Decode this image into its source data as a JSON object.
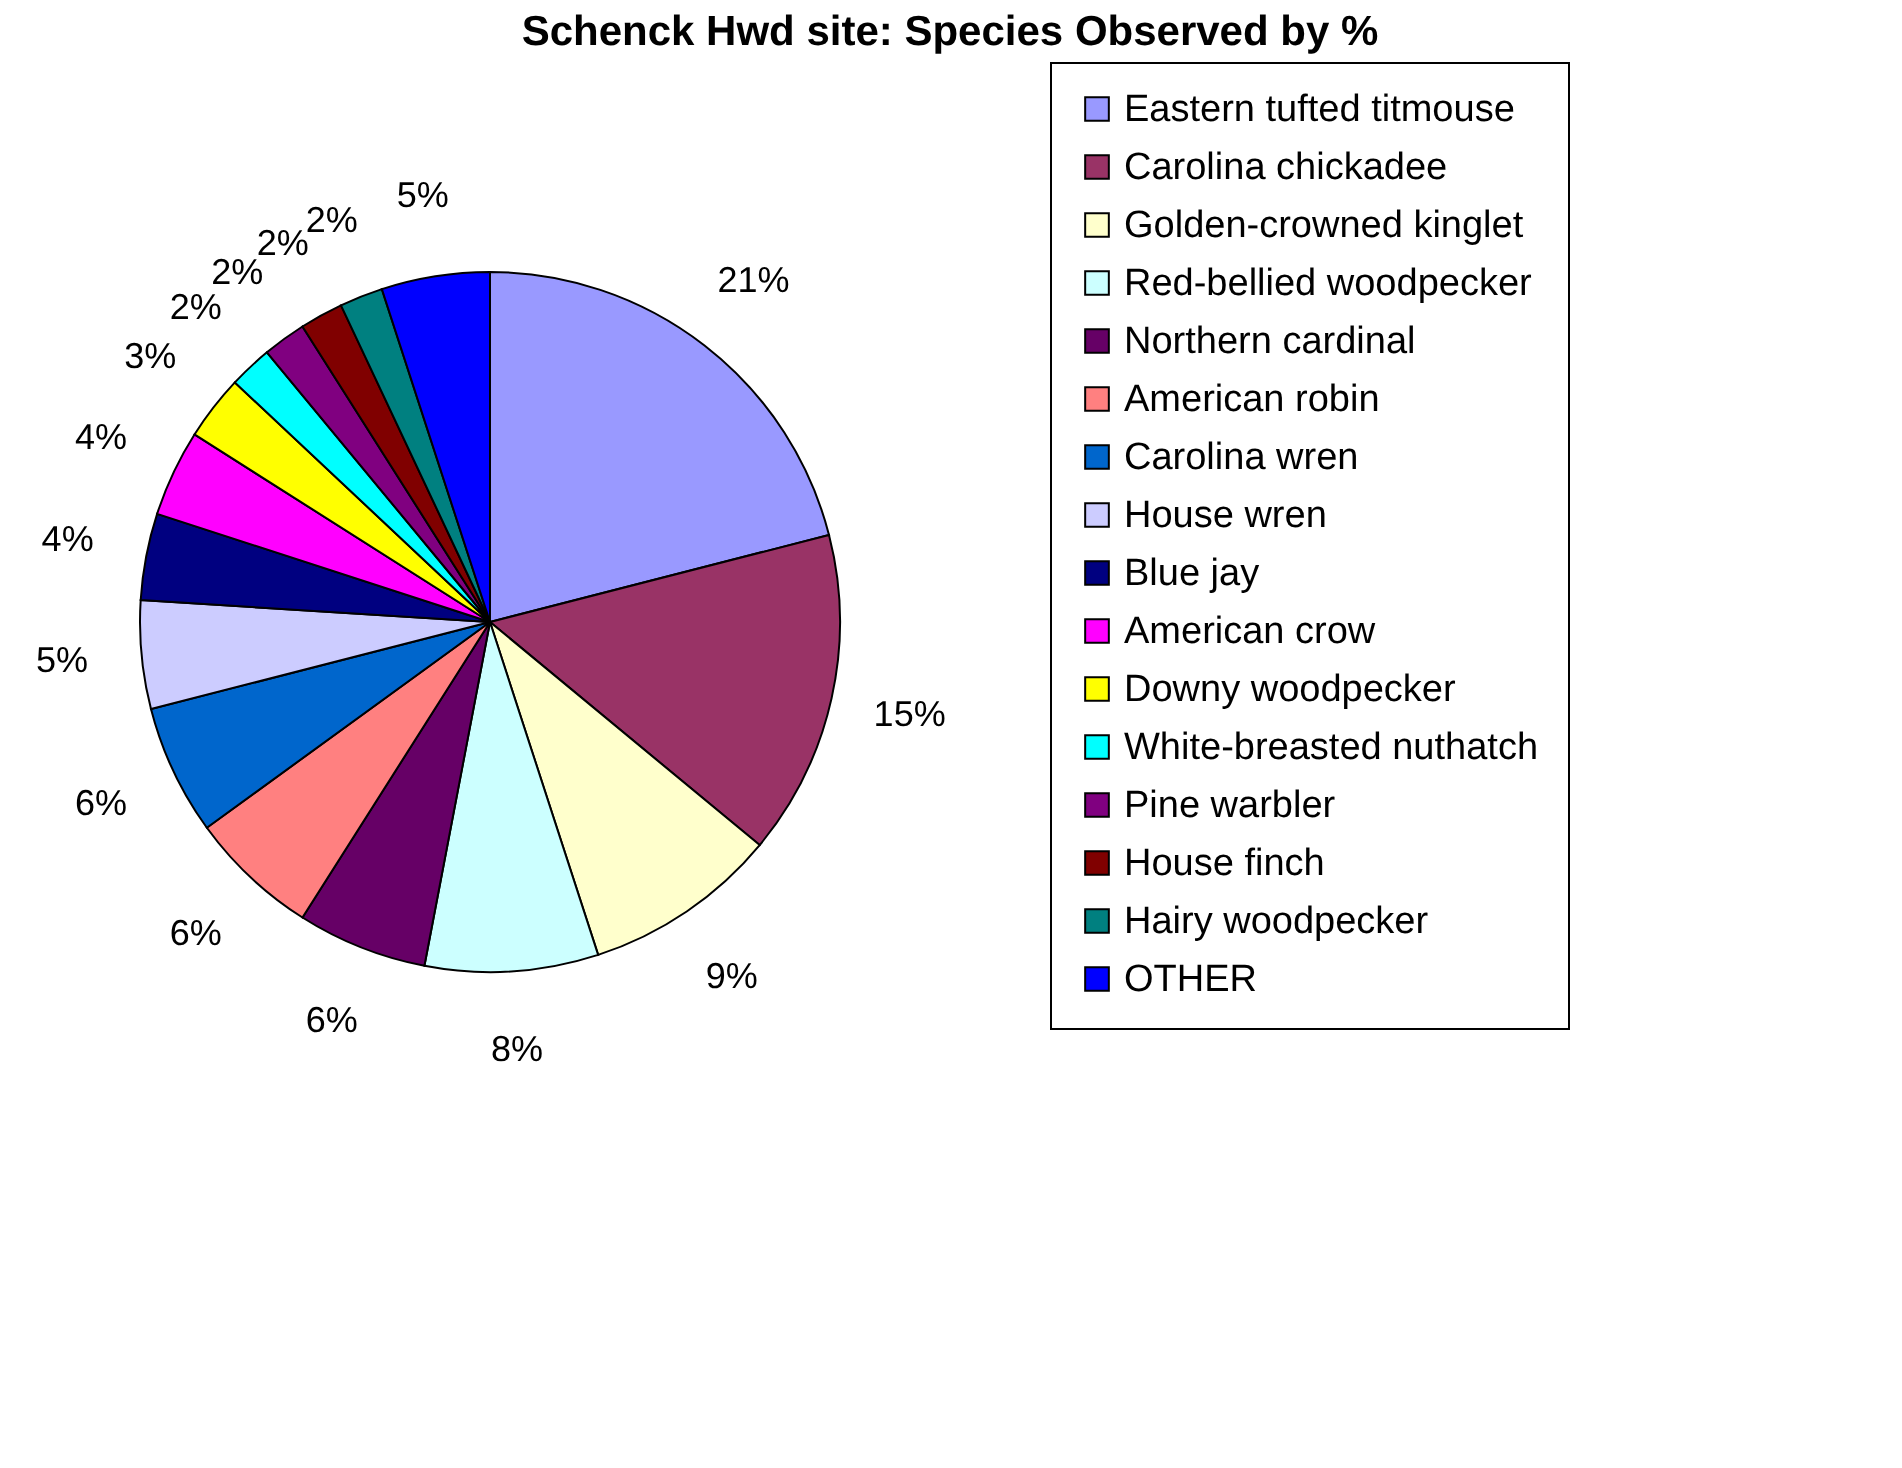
{
  "chart_data": {
    "type": "pie",
    "title": "Schenck Hwd site: Species Observed by %",
    "categories": [
      "Eastern tufted titmouse",
      "Carolina chickadee",
      "Golden-crowned kinglet",
      "Red-bellied woodpecker",
      "Northern cardinal",
      "American robin",
      "Carolina wren",
      "House wren",
      "Blue jay",
      "American crow",
      "Downy woodpecker",
      "White-breasted nuthatch",
      "Pine warbler",
      "House finch",
      "Hairy woodpecker",
      "OTHER"
    ],
    "values": [
      21,
      15,
      9,
      8,
      6,
      6,
      6,
      5,
      4,
      4,
      3,
      2,
      2,
      2,
      2,
      5
    ],
    "colors": [
      "#9999ff",
      "#993366",
      "#ffffcc",
      "#ccffff",
      "#660066",
      "#ff8080",
      "#0066cc",
      "#ccccff",
      "#000080",
      "#ff00ff",
      "#ffff00",
      "#00ffff",
      "#800080",
      "#800000",
      "#008080",
      "#0000ff"
    ],
    "value_labels": [
      "21%",
      "15%",
      "9%",
      "8%",
      "6%",
      "6%",
      "6%",
      "5%",
      "4%",
      "4%",
      "3%",
      "2%",
      "2%",
      "2%",
      "2%",
      "5%"
    ],
    "legend": "right"
  }
}
